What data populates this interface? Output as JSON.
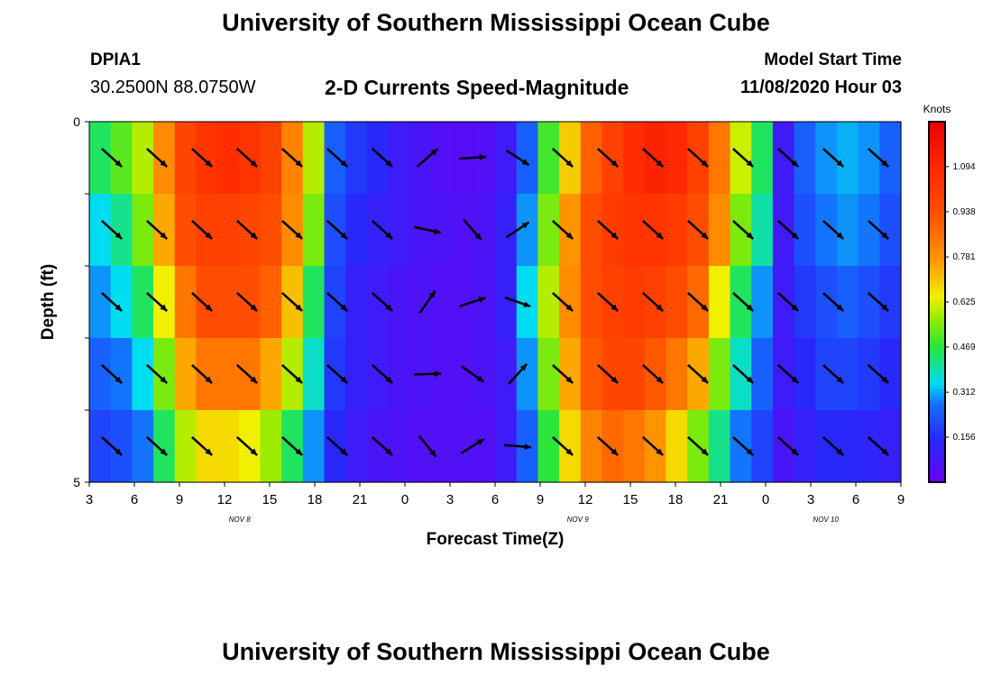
{
  "header": {
    "title": "University of Southern Mississippi Ocean Cube",
    "station": "DPIA1",
    "coords": "30.2500N 88.0750W",
    "subtitle": "2-D Currents Speed-Magnitude",
    "model_start_label": "Model Start Time",
    "model_start_value": "11/08/2020 Hour 03"
  },
  "footer": {
    "title": "University of Southern Mississippi Ocean Cube"
  },
  "chart_data": {
    "type": "heatmap",
    "title": "2-D Currents Speed-Magnitude",
    "xlabel": "Forecast Time(Z)",
    "ylabel": "Depth (ft)",
    "x_tick_labels": [
      "3",
      "6",
      "9",
      "12",
      "15",
      "18",
      "21",
      "0",
      "3",
      "6",
      "9",
      "12",
      "15",
      "18",
      "21",
      "0",
      "3",
      "6",
      "9"
    ],
    "x_hours": [
      0,
      54
    ],
    "date_labels": [
      {
        "label": "NOV 8",
        "hour": 10
      },
      {
        "label": "NOV 9",
        "hour": 32.5
      },
      {
        "label": "NOV 10",
        "hour": 49
      }
    ],
    "y_tick_labels": [
      "0",
      "5"
    ],
    "y_range_ft": [
      0,
      5
    ],
    "colorbar": {
      "title": "Knots",
      "ticks": [
        "1.094",
        "0.938",
        "0.781",
        "0.625",
        "0.469",
        "0.312",
        "0.156"
      ],
      "range": [
        0,
        1.25
      ]
    },
    "depth_rows": 5,
    "speed": [
      [
        0.45,
        0.52,
        0.6,
        0.8,
        0.98,
        1.05,
        1.08,
        1.05,
        1.0,
        0.82,
        0.6,
        0.25,
        0.18,
        0.15,
        0.1,
        0.08,
        0.06,
        0.05,
        0.06,
        0.1,
        0.25,
        0.5,
        0.7,
        0.9,
        1.0,
        1.08,
        1.12,
        1.1,
        1.0,
        0.85,
        0.62,
        0.45,
        0.1,
        0.25,
        0.3,
        0.32,
        0.3,
        0.25
      ],
      [
        0.35,
        0.42,
        0.55,
        0.75,
        0.95,
        1.0,
        1.0,
        0.98,
        0.95,
        0.8,
        0.55,
        0.22,
        0.15,
        0.12,
        0.1,
        0.08,
        0.07,
        0.06,
        0.07,
        0.12,
        0.3,
        0.55,
        0.78,
        0.95,
        1.02,
        1.05,
        1.05,
        1.02,
        0.95,
        0.8,
        0.55,
        0.4,
        0.1,
        0.22,
        0.28,
        0.3,
        0.28,
        0.22
      ],
      [
        0.3,
        0.35,
        0.45,
        0.65,
        0.85,
        0.95,
        0.95,
        0.95,
        0.9,
        0.72,
        0.45,
        0.2,
        0.12,
        0.1,
        0.08,
        0.07,
        0.06,
        0.06,
        0.07,
        0.12,
        0.35,
        0.6,
        0.8,
        0.95,
        1.0,
        1.02,
        1.0,
        0.95,
        0.88,
        0.65,
        0.45,
        0.3,
        0.1,
        0.18,
        0.22,
        0.25,
        0.22,
        0.18
      ],
      [
        0.25,
        0.28,
        0.35,
        0.55,
        0.75,
        0.85,
        0.85,
        0.85,
        0.75,
        0.6,
        0.38,
        0.18,
        0.12,
        0.1,
        0.08,
        0.07,
        0.06,
        0.06,
        0.07,
        0.1,
        0.3,
        0.55,
        0.75,
        0.92,
        0.98,
        0.98,
        0.92,
        0.85,
        0.75,
        0.55,
        0.38,
        0.25,
        0.1,
        0.15,
        0.2,
        0.2,
        0.18,
        0.15
      ],
      [
        0.2,
        0.22,
        0.28,
        0.45,
        0.6,
        0.68,
        0.68,
        0.65,
        0.58,
        0.45,
        0.3,
        0.15,
        0.1,
        0.08,
        0.07,
        0.06,
        0.06,
        0.06,
        0.06,
        0.1,
        0.25,
        0.48,
        0.68,
        0.82,
        0.88,
        0.85,
        0.78,
        0.68,
        0.55,
        0.42,
        0.28,
        0.2,
        0.08,
        0.12,
        0.15,
        0.15,
        0.14,
        0.12
      ]
    ]
  }
}
